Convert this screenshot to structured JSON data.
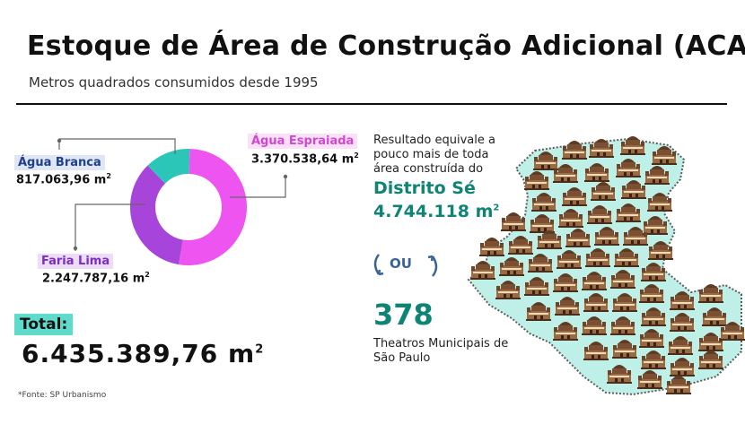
{
  "title": "Estoque de Área de Construção Adicional (ACA)",
  "subtitle": "Metros quadrados consumidos desde 1995",
  "chart_data": {
    "type": "pie",
    "title": "Estoque de Área de Construção Adicional (ACA)",
    "subtitle": "Metros quadrados consumidos desde 1995",
    "unit": "m²",
    "slices": [
      {
        "name": "Água Espraiada",
        "value": 3370538.64,
        "label": "3.370.538,64 m",
        "color": "#ee55f0"
      },
      {
        "name": "Faria Lima",
        "value": 2247787.16,
        "label": "2.247.787,16 m",
        "color": "#a744d9"
      },
      {
        "name": "Água Branca",
        "value": 817063.96,
        "label": "817.063,96 m",
        "color": "#2cc6b8"
      }
    ],
    "unit_base": "m",
    "unit_exp": "2",
    "total_label": "Total:",
    "total_value": "6.435.389,76 m"
  },
  "comparison": {
    "text": "Resultado equivale a pouco mais de toda área construída do",
    "district_name": "Distrito Sé",
    "district_value": "4.744.118 m",
    "or_text": "OU",
    "count": "378",
    "count_desc": "Theatros Municipais de São Paulo"
  },
  "source": "*Fonte: SP Urbanismo",
  "colors": {
    "teal": "#0e8474",
    "map_fill": "#bff0e8",
    "map_stroke": "#5c5c5c"
  },
  "icons": [
    "theatro-municipal-icon",
    "curved-arrow-icon"
  ]
}
